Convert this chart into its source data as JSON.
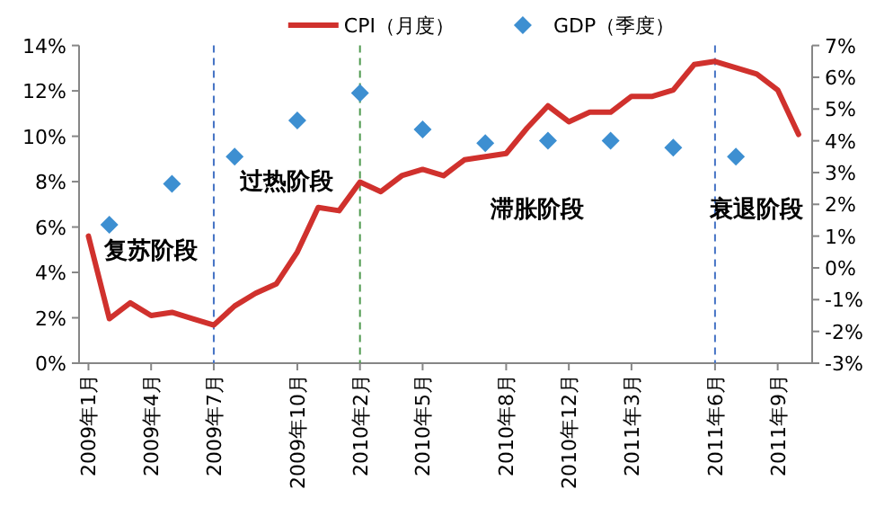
{
  "chart_data": {
    "type": "line",
    "legend": "top",
    "categories": [
      "2009年1月",
      null,
      null,
      "2009年4月",
      null,
      null,
      "2009年7月",
      null,
      null,
      null,
      "2009年10月",
      null,
      null,
      "2010年2月",
      null,
      null,
      "2010年5月",
      null,
      null,
      null,
      "2010年8月",
      null,
      null,
      "2010年12月",
      null,
      null,
      "2011年3月",
      null,
      null,
      null,
      "2011年6月",
      null,
      null,
      "2011年9月",
      null
    ],
    "ylim": [
      0,
      14
    ],
    "yticks": [
      {
        "value": 0,
        "label": "0%"
      },
      {
        "value": 2,
        "label": "2%"
      },
      {
        "value": 4,
        "label": "4%"
      },
      {
        "value": 6,
        "label": "6%"
      },
      {
        "value": 8,
        "label": "8%"
      },
      {
        "value": 10,
        "label": "10%"
      },
      {
        "value": 12,
        "label": "12%"
      },
      {
        "value": 14,
        "label": "14%"
      }
    ],
    "y2lim": [
      -3,
      7
    ],
    "y2ticks": [
      {
        "value": -3,
        "label": "-3%"
      },
      {
        "value": -2,
        "label": "-2%"
      },
      {
        "value": -1,
        "label": "-1%"
      },
      {
        "value": 0,
        "label": "0%"
      },
      {
        "value": 1,
        "label": "1%"
      },
      {
        "value": 2,
        "label": "2%"
      },
      {
        "value": 3,
        "label": "3%"
      },
      {
        "value": 4,
        "label": "4%"
      },
      {
        "value": 5,
        "label": "5%"
      },
      {
        "value": 6,
        "label": "6%"
      },
      {
        "value": 7,
        "label": "7%"
      }
    ],
    "series": [
      {
        "name": "CPI（月度）",
        "axis": "y2",
        "color": "#d0312d",
        "values": [
          1.0,
          -1.6,
          -1.1,
          -1.5,
          -1.4,
          -1.6,
          -1.8,
          -1.2,
          -0.8,
          -0.5,
          0.5,
          1.9,
          1.8,
          2.7,
          2.4,
          2.9,
          3.1,
          2.9,
          3.4,
          3.5,
          3.6,
          4.4,
          5.1,
          4.6,
          4.9,
          4.9,
          5.4,
          5.4,
          5.6,
          6.4,
          6.5,
          6.3,
          6.1,
          5.6,
          4.2
        ]
      },
      {
        "name": "GDP（季度）",
        "type": "scatter",
        "axis": "y",
        "color": "#3d8fd1",
        "marker": "diamond",
        "values": [
          null,
          6.1,
          null,
          null,
          7.9,
          null,
          null,
          9.1,
          null,
          null,
          10.7,
          null,
          null,
          11.9,
          null,
          null,
          10.3,
          null,
          null,
          9.7,
          null,
          null,
          9.8,
          null,
          null,
          9.8,
          null,
          null,
          9.5,
          null,
          null,
          9.1,
          null,
          null,
          null
        ]
      }
    ],
    "ref_lines": [
      {
        "axis": "x",
        "value": "2009年7月",
        "color": "#4472c4",
        "line_style": "dashed"
      },
      {
        "axis": "x",
        "value": "2010年2月",
        "color": "#4f9a4f",
        "line_style": "dashed"
      },
      {
        "axis": "x",
        "value": "2011年6月",
        "color": "#4472c4",
        "line_style": "dashed"
      }
    ],
    "annotations": [
      "复苏阶段",
      "过热阶段",
      "滞胀阶段",
      "衰退阶段"
    ]
  }
}
